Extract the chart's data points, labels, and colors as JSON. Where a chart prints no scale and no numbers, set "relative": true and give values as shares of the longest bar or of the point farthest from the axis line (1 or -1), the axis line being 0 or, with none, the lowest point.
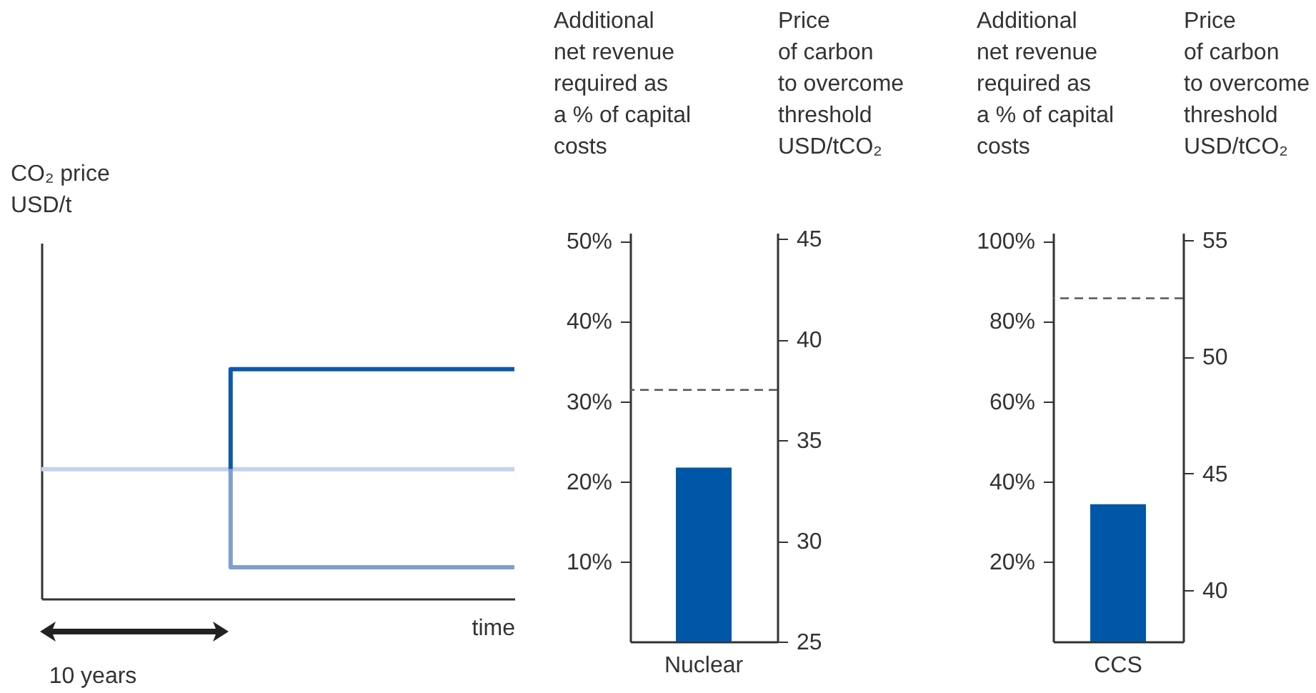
{
  "chart_data": [
    {
      "type": "step",
      "relative": true,
      "ylabel": "CO₂ price\nUSD/t",
      "xlabel": "time",
      "annotations": [
        "10 years"
      ],
      "categories": [
        null,
        null,
        null,
        null,
        null,
        null,
        null,
        null,
        null,
        null,
        null
      ],
      "series": [
        {
          "color": "#c5d3ea",
          "values": [
            0.564,
            0.564,
            0.564,
            0.564,
            0.564,
            0.564,
            0.564,
            0.564,
            0.564,
            0.564,
            0.564
          ]
        },
        {
          "color": "#0a5aaa",
          "values": [
            null,
            null,
            null,
            null,
            0.564,
            1,
            1,
            1,
            1,
            1,
            1
          ]
        },
        {
          "color": "#7f9ed1",
          "values": [
            null,
            null,
            null,
            null,
            0.564,
            0.137,
            0.137,
            0.137,
            0.137,
            0.137,
            0.137
          ]
        }
      ]
    },
    {
      "type": "bar",
      "ylabel": "Additional\nnet revenue\nrequired as\na % of capital\ncosts",
      "y2label": "Price\nof carbon\nto overcome\nthreshold\nUSD/tCO₂",
      "categories": [
        "Nuclear"
      ],
      "values": [
        21.7
      ],
      "color": "#0057a8",
      "ylim": [
        0,
        51
      ],
      "yticks": [
        {
          "value": 10,
          "label": "10%"
        },
        {
          "value": 20,
          "label": "20%"
        },
        {
          "value": 30,
          "label": "30%"
        },
        {
          "value": 40,
          "label": "40%"
        },
        {
          "value": 50,
          "label": "50%"
        }
      ],
      "y2lim": [
        25,
        45.3
      ],
      "y2ticks": [
        25,
        30,
        35,
        40,
        45
      ],
      "ref_lines": [
        {
          "axis": "y2",
          "value": 37.5,
          "color": "#555555",
          "line_style": "dashed"
        }
      ]
    },
    {
      "type": "bar",
      "ylabel": "Additional\nnet revenue\nrequired as\na % of capital\ncosts",
      "y2label": "Price\nof carbon\nto overcome\nthreshold\nUSD/tCO₂",
      "categories": [
        "CCS"
      ],
      "values": [
        34.3
      ],
      "color": "#0057a8",
      "ylim": [
        0,
        102
      ],
      "yticks": [
        {
          "value": 20,
          "label": "20%"
        },
        {
          "value": 40,
          "label": "40%"
        },
        {
          "value": 60,
          "label": "60%"
        },
        {
          "value": 80,
          "label": "80%"
        },
        {
          "value": 100,
          "label": "100%"
        }
      ],
      "y2lim": [
        37.8,
        55.3
      ],
      "y2ticks": [
        40,
        45,
        50,
        55
      ],
      "ref_lines": [
        {
          "axis": "y2",
          "value": 52.5,
          "color": "#555555",
          "line_style": "dashed"
        }
      ]
    }
  ]
}
